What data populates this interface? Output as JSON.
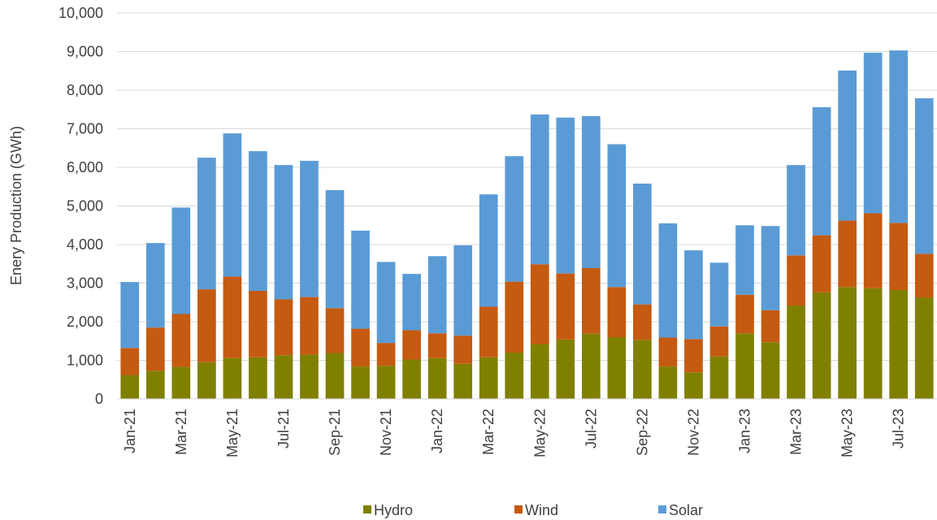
{
  "chart_data": {
    "type": "stacked_bar",
    "y_label": "Enery Production (GWh)",
    "categories": [
      "Jan-21",
      null,
      "Mar-21",
      null,
      "May-21",
      null,
      "Jul-21",
      null,
      "Sep-21",
      null,
      "Nov-21",
      null,
      "Jan-22",
      null,
      "Mar-22",
      null,
      "May-22",
      null,
      "Jul-22",
      null,
      "Sep-22",
      null,
      "Nov-22",
      null,
      "Jan-23",
      null,
      "Mar-23",
      null,
      "May-23",
      null,
      "Jul-23",
      null
    ],
    "series": [
      {
        "name": "Hydro",
        "color": "#808000",
        "values": [
          620,
          730,
          830,
          950,
          1060,
          1080,
          1130,
          1150,
          1190,
          840,
          860,
          1020,
          1060,
          910,
          1080,
          1200,
          1420,
          1540,
          1690,
          1600,
          1530,
          840,
          690,
          1100,
          1700,
          1470,
          2420,
          2760,
          2900,
          2870,
          2820,
          2630
        ]
      },
      {
        "name": "Wind",
        "color": "#c55a11",
        "values": [
          700,
          1120,
          1370,
          1890,
          2110,
          1720,
          1450,
          1490,
          1160,
          980,
          590,
          760,
          640,
          730,
          1310,
          1840,
          2070,
          1710,
          1700,
          1300,
          920,
          750,
          860,
          780,
          1000,
          830,
          1300,
          1480,
          1720,
          1940,
          1740,
          1130
        ]
      },
      {
        "name": "Solar",
        "color": "#5b9bd5",
        "values": [
          1710,
          2190,
          2760,
          3410,
          3710,
          3620,
          3480,
          3530,
          3060,
          2540,
          2100,
          1460,
          2000,
          2340,
          2910,
          3250,
          3880,
          4040,
          3940,
          3700,
          3130,
          2960,
          2300,
          1650,
          1800,
          2180,
          2340,
          3320,
          3890,
          4160,
          4470,
          4030
        ]
      }
    ],
    "ylim": [
      0,
      10000
    ],
    "yticks": [
      0,
      {
        "value": 1000,
        "label": "1,000"
      },
      {
        "value": 2000,
        "label": "2,000"
      },
      {
        "value": 3000,
        "label": "3,000"
      },
      {
        "value": 4000,
        "label": "4,000"
      },
      {
        "value": 5000,
        "label": "5,000"
      },
      {
        "value": 6000,
        "label": "6,000"
      },
      {
        "value": 7000,
        "label": "7,000"
      },
      {
        "value": 8000,
        "label": "8,000"
      },
      {
        "value": 9000,
        "label": "9,000"
      },
      {
        "value": 10000,
        "label": "10,000"
      }
    ],
    "grid": true,
    "legend": "bottom"
  }
}
